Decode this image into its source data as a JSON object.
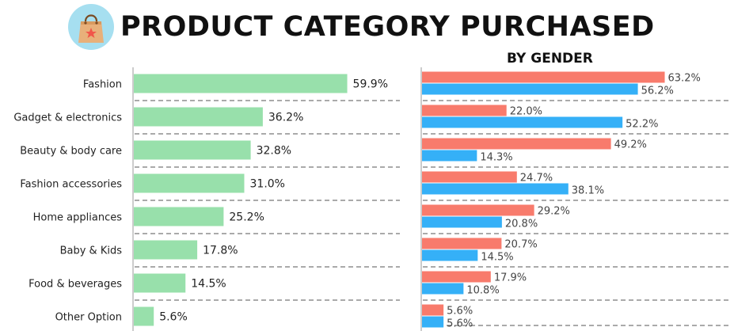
{
  "header": {
    "title": "PRODUCT CATEGORY PURCHASED",
    "subtitle": "BY GENDER",
    "logo_icon": "shopping-bag-icon"
  },
  "colors": {
    "total": "#98e0ab",
    "female": "#f87b6c",
    "male": "#35b0f7",
    "logo_bg": "#a6dff0"
  },
  "chart_data": [
    {
      "type": "bar",
      "orientation": "horizontal",
      "categories": [
        "Fashion",
        "Gadget & electronics",
        "Beauty & body care",
        "Fashion accessories",
        "Home appliances",
        "Baby & Kids",
        "Food & beverages",
        "Other Option"
      ],
      "series": [
        {
          "values": [
            59.9,
            36.2,
            32.8,
            31.0,
            25.2,
            17.8,
            14.5,
            5.6
          ]
        }
      ],
      "value_labels": [
        "59.9%",
        "36.2%",
        "32.8%",
        "31.0%",
        "25.2%",
        "17.8%",
        "14.5%",
        "5.6%"
      ],
      "title": "PRODUCT CATEGORY PURCHASED",
      "xlabel": "",
      "ylabel": "",
      "xlim": [
        0,
        100
      ]
    },
    {
      "type": "bar",
      "orientation": "horizontal",
      "categories": [
        "Fashion",
        "Gadget & electronics",
        "Beauty & body care",
        "Fashion accessories",
        "Home appliances",
        "Baby & Kids",
        "Food & beverages",
        "Other Option"
      ],
      "series": [
        {
          "values": [
            63.2,
            22.0,
            49.2,
            24.7,
            29.2,
            20.7,
            17.9,
            5.6
          ],
          "labels": [
            "63.2%",
            "22.0%",
            "49.2%",
            "24.7%",
            "29.2%",
            "20.7%",
            "17.9%",
            "5.6%"
          ]
        },
        {
          "values": [
            56.2,
            52.2,
            14.3,
            38.1,
            20.8,
            14.5,
            10.8,
            5.6
          ],
          "labels": [
            "56.2%",
            "52.2%",
            "14.3%",
            "38.1%",
            "20.8%",
            "14.5%",
            "10.8%",
            "5.6%"
          ]
        }
      ],
      "title": "BY GENDER",
      "xlabel": "",
      "ylabel": "",
      "xlim": [
        0,
        100
      ],
      "grid": "dashed row separators"
    }
  ]
}
